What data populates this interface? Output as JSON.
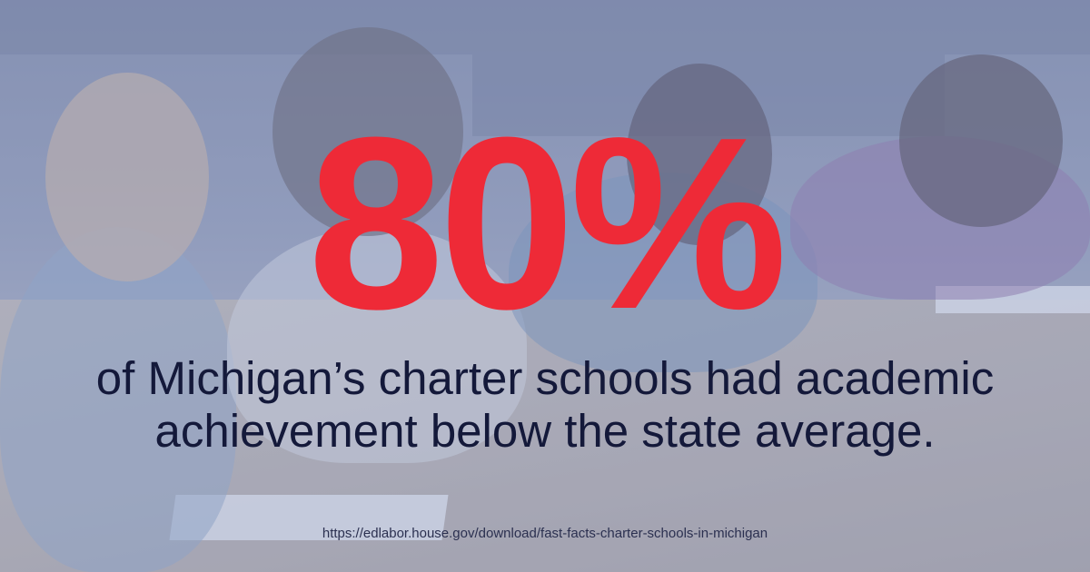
{
  "stat": {
    "value": "80%"
  },
  "caption": {
    "line1": "of Michigan’s charter schools had academic",
    "line2": "achievement below the state average."
  },
  "source": {
    "url": "https://edlabor.house.gov/download/fast-facts-charter-schools-in-michigan"
  },
  "colors": {
    "stat": "#ee2a37",
    "caption": "#14193a",
    "overlay": "#96a5cd"
  }
}
